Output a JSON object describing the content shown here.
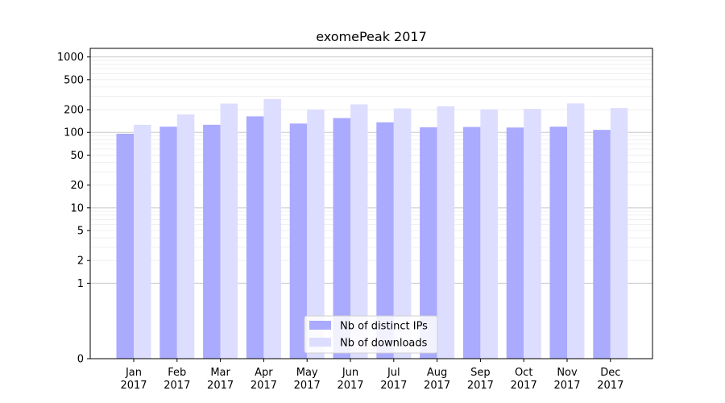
{
  "chart_data": {
    "type": "bar",
    "title": "exomePeak 2017",
    "xlabel": "",
    "ylabel": "",
    "yscale": "symlog",
    "ylim": [
      0,
      1300
    ],
    "yticks": [
      0,
      1,
      2,
      5,
      10,
      20,
      50,
      100,
      200,
      500,
      1000
    ],
    "grid": true,
    "legend_position": "bottom-center",
    "categories": [
      {
        "month": "Jan",
        "year": "2017"
      },
      {
        "month": "Feb",
        "year": "2017"
      },
      {
        "month": "Mar",
        "year": "2017"
      },
      {
        "month": "Apr",
        "year": "2017"
      },
      {
        "month": "May",
        "year": "2017"
      },
      {
        "month": "Jun",
        "year": "2017"
      },
      {
        "month": "Jul",
        "year": "2017"
      },
      {
        "month": "Aug",
        "year": "2017"
      },
      {
        "month": "Sep",
        "year": "2017"
      },
      {
        "month": "Oct",
        "year": "2017"
      },
      {
        "month": "Nov",
        "year": "2017"
      },
      {
        "month": "Dec",
        "year": "2017"
      }
    ],
    "series": [
      {
        "name": "Nb of distinct IPs",
        "color": "#aaaaff",
        "values": [
          96,
          119,
          126,
          163,
          131,
          155,
          136,
          117,
          118,
          116,
          119,
          108
        ]
      },
      {
        "name": "Nb of downloads",
        "color": "#ddddff",
        "values": [
          126,
          173,
          241,
          277,
          201,
          235,
          208,
          222,
          202,
          205,
          242,
          210
        ]
      }
    ]
  }
}
